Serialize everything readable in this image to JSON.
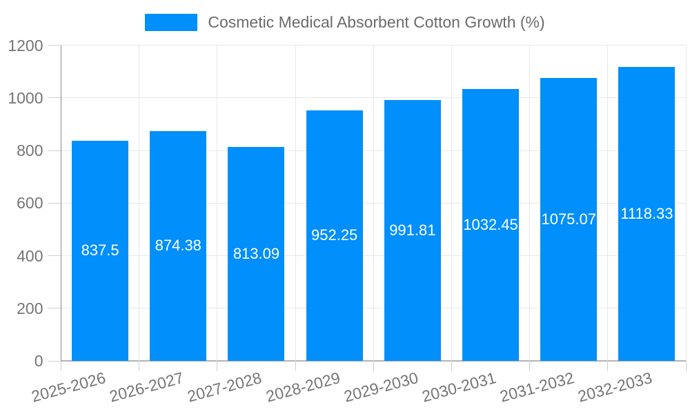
{
  "legend": {
    "label": "Cosmetic Medical Absorbent Cotton Growth (%)",
    "swatch_color": "#008FFB"
  },
  "chart_data": {
    "type": "bar",
    "title": "Cosmetic Medical Absorbent Cotton Growth (%)",
    "categories": [
      "2025-2026",
      "2026-2027",
      "2027-2028",
      "2028-2029",
      "2029-2030",
      "2030-2031",
      "2031-2032",
      "2032-2033"
    ],
    "series": [
      {
        "name": "Cosmetic Medical Absorbent Cotton Growth (%)",
        "values": [
          837.5,
          874.38,
          813.09,
          952.25,
          991.81,
          1032.45,
          1075.07,
          1118.33
        ]
      }
    ],
    "value_labels": [
      "837.5",
      "874.38",
      "813.09",
      "952.25",
      "991.81",
      "1032.45",
      "1075.07",
      "1118.33"
    ],
    "xlabel": "",
    "ylabel": "",
    "ylim": [
      0,
      1200
    ],
    "yticks": [
      0,
      200,
      400,
      600,
      800,
      1000,
      1200
    ],
    "grid": true,
    "legend_position": "top",
    "x_tick_rotation_deg": -15,
    "colors": {
      "bar": "#008FFB",
      "value_label_text": "#ffffff",
      "axis_text": "#757575",
      "legend_text": "#6b6b6b",
      "gridline": "#e7e7e7",
      "y_axis_line": "#8c8c8c",
      "x_axis_line": "#b3b3b3",
      "tick": "#cfcfcf",
      "background": "#ffffff"
    }
  }
}
